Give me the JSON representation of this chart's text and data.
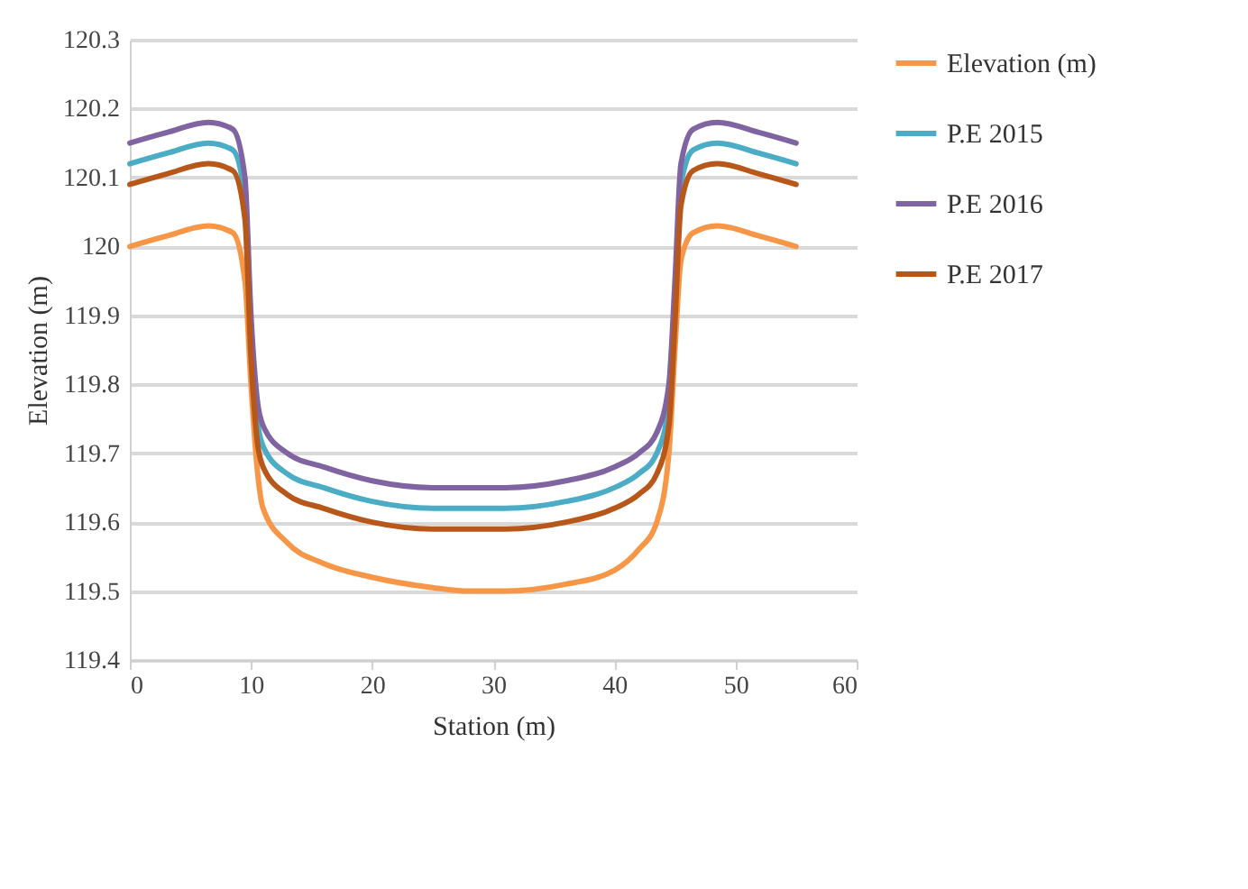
{
  "chart_data": {
    "type": "line",
    "xlabel": "Station (m)",
    "ylabel": "Elevation (m)",
    "x": [
      0,
      3,
      6.5,
      8.5,
      9.5,
      10,
      10.5,
      11,
      13,
      16,
      20,
      25,
      28,
      31,
      36,
      40,
      42,
      43.5,
      44.5,
      45,
      45.5,
      46.5,
      48.5,
      52,
      55
    ],
    "series": [
      {
        "name": "Elevation (m)",
        "color": "#f79646",
        "values": [
          120.0,
          120.015,
          120.03,
          120.02,
          119.95,
          119.8,
          119.68,
          119.62,
          119.57,
          119.54,
          119.52,
          119.505,
          119.5,
          119.5,
          119.51,
          119.53,
          119.56,
          119.6,
          119.7,
          119.85,
          119.98,
          120.02,
          120.03,
          120.015,
          120.0
        ]
      },
      {
        "name": "P.E 2015",
        "color": "#4bacc6",
        "values": [
          120.12,
          120.135,
          120.15,
          120.14,
          120.07,
          119.87,
          119.75,
          119.71,
          119.67,
          119.65,
          119.63,
          119.62,
          119.62,
          119.62,
          119.63,
          119.65,
          119.67,
          119.7,
          119.77,
          119.92,
          120.09,
          120.14,
          120.15,
          120.135,
          120.12
        ]
      },
      {
        "name": "P.E 2016",
        "color": "#8064a2",
        "values": [
          120.15,
          120.165,
          120.18,
          120.17,
          120.1,
          119.9,
          119.78,
          119.74,
          119.7,
          119.68,
          119.66,
          119.65,
          119.65,
          119.65,
          119.66,
          119.68,
          119.7,
          119.73,
          119.8,
          119.95,
          120.12,
          120.17,
          120.18,
          120.165,
          120.15
        ]
      },
      {
        "name": "P.E 2017",
        "color": "#b8571a",
        "values": [
          120.09,
          120.105,
          120.12,
          120.11,
          120.04,
          119.84,
          119.72,
          119.68,
          119.64,
          119.62,
          119.6,
          119.59,
          119.59,
          119.59,
          119.6,
          119.62,
          119.64,
          119.67,
          119.74,
          119.89,
          120.06,
          120.11,
          120.12,
          120.105,
          120.09
        ]
      }
    ],
    "xlim": [
      0,
      60
    ],
    "xticks": [
      0,
      10,
      20,
      30,
      40,
      50,
      60
    ],
    "ylim": [
      119.4,
      120.3
    ],
    "yticks": [
      119.4,
      119.5,
      119.6,
      119.7,
      119.8,
      119.9,
      120,
      120.1,
      120.2,
      120.3
    ],
    "grid": "y",
    "legend": "right"
  }
}
